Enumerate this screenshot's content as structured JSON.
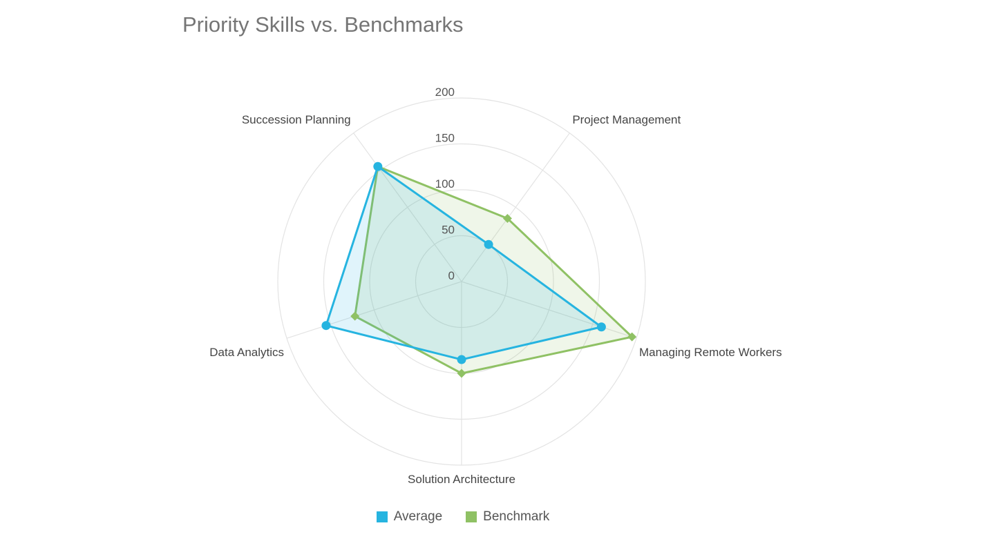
{
  "chart_data": {
    "type": "radar",
    "title": "Priority Skills vs. Benchmarks",
    "categories": [
      "Project Management",
      "Managing Remote Workers",
      "Solution Architecture",
      "Data Analytics",
      "Succession Planning"
    ],
    "series": [
      {
        "name": "Average",
        "values": [
          50,
          160,
          85,
          155,
          155
        ],
        "color": "#26b4e0",
        "marker": "circle"
      },
      {
        "name": "Benchmark",
        "values": [
          85,
          195,
          100,
          122,
          155
        ],
        "color": "#8fc164",
        "marker": "diamond"
      }
    ],
    "radial_axis": {
      "min": 0,
      "max": 200,
      "ticks": [
        0,
        50,
        100,
        150,
        200
      ]
    },
    "grid": true,
    "legend_position": "bottom"
  }
}
